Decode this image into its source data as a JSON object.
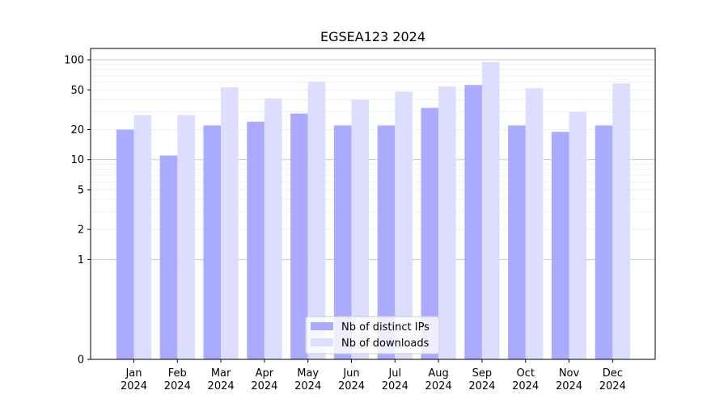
{
  "chart_data": {
    "type": "bar",
    "title": "EGSEA123 2024",
    "xlabel": "",
    "ylabel": "",
    "y_scale": "symlog",
    "ylim": [
      0,
      130
    ],
    "y_ticks": [
      0,
      1,
      2,
      5,
      10,
      20,
      50,
      100
    ],
    "categories": [
      "Jan\n2024",
      "Feb\n2024",
      "Mar\n2024",
      "Apr\n2024",
      "May\n2024",
      "Jun\n2024",
      "Jul\n2024",
      "Aug\n2024",
      "Sep\n2024",
      "Oct\n2024",
      "Nov\n2024",
      "Dec\n2024"
    ],
    "series": [
      {
        "name": "Nb of distinct IPs",
        "color": "#aaaaff",
        "values": [
          20,
          11,
          22,
          24,
          29,
          22,
          22,
          33,
          56,
          22,
          19,
          22
        ]
      },
      {
        "name": "Nb of downloads",
        "color": "#ddddff",
        "values": [
          28,
          28,
          53,
          41,
          60,
          40,
          48,
          54,
          95,
          52,
          30,
          58
        ]
      }
    ],
    "grid": "y",
    "legend_position": "bottom-center"
  }
}
